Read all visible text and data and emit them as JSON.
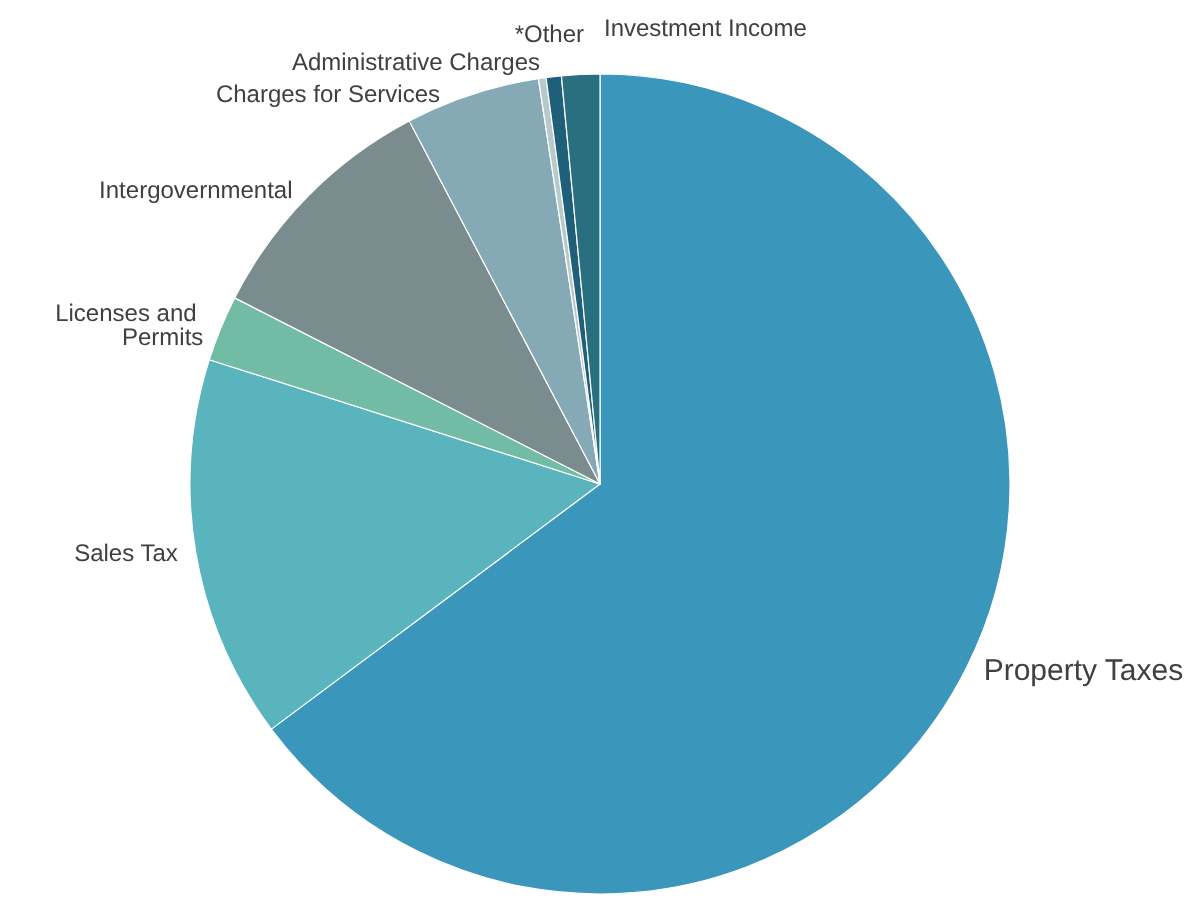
{
  "chart_data": {
    "type": "pie",
    "categories": [
      "Property Taxes",
      "Sales Tax",
      "Licenses and Permits",
      "Intergovernmental",
      "Charges for Services",
      "Administrative Charges",
      "*Other",
      "Investment Income"
    ],
    "values": [
      64.8,
      15.1,
      2.6,
      9.8,
      5.3,
      0.3,
      0.6,
      1.5
    ],
    "colors": [
      "#3a96bb",
      "#5ab4be",
      "#72bca5",
      "#7a8c8e",
      "#85aab5",
      "#b7c9cc",
      "#1f5f7a",
      "#2a6f7f"
    ],
    "legend": false
  }
}
